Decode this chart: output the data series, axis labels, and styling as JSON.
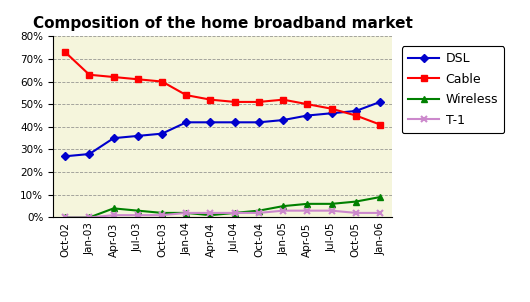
{
  "title": "Composition of the home broadband market",
  "x_labels": [
    "Oct-02",
    "Jan-03",
    "Apr-03",
    "Jul-03",
    "Oct-03",
    "Jan-04",
    "Apr-04",
    "Jul-04",
    "Oct-04",
    "Jan-05",
    "Apr-05",
    "Jul-05",
    "Oct-05",
    "Jan-06"
  ],
  "dsl": [
    27,
    28,
    35,
    36,
    37,
    42,
    42,
    42,
    42,
    43,
    45,
    46,
    47,
    51
  ],
  "cable": [
    73,
    63,
    62,
    61,
    60,
    54,
    52,
    51,
    51,
    52,
    50,
    48,
    45,
    41
  ],
  "wireless": [
    0,
    0,
    4,
    3,
    2,
    2,
    1,
    2,
    3,
    5,
    6,
    6,
    7,
    9
  ],
  "t1": [
    0,
    0,
    1,
    1,
    1,
    2,
    2,
    2,
    2,
    3,
    3,
    3,
    2,
    2
  ],
  "dsl_color": "#0000CC",
  "cable_color": "#FF0000",
  "wireless_color": "#008000",
  "t1_color": "#CC88CC",
  "bg_color": "#FFFFFF",
  "plot_bg_color": "#F5F5DC",
  "ylim": [
    0,
    80
  ],
  "yticks": [
    0,
    10,
    20,
    30,
    40,
    50,
    60,
    70,
    80
  ],
  "title_fontsize": 11,
  "legend_fontsize": 9,
  "tick_fontsize": 7.5
}
